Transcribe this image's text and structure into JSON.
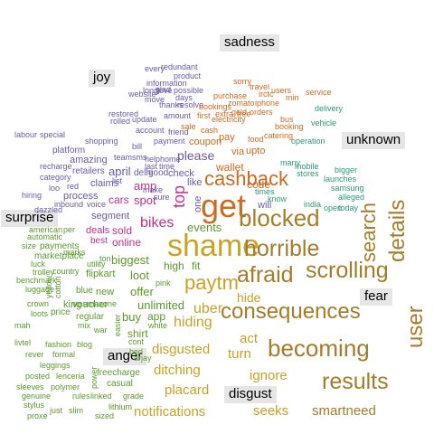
{
  "colors": {
    "surprise": "#c9a227",
    "fear": "#a67c2a",
    "joy": "#6a5aa8",
    "sadness": "#8a8ac0",
    "anger": "#5a9a2a",
    "disgust": "#b5a24a",
    "unknown": "#7aa04a",
    "cashback": "#d2691e",
    "pink": "#c4308a",
    "teal": "#2a9a7a"
  },
  "emotions": {
    "sadness": "sadness",
    "joy": "joy",
    "unknown": "unknown",
    "surprise": "surprise",
    "fear": "fear",
    "anger": "anger",
    "disgust": "disgust"
  },
  "words": {
    "shame": "shame",
    "get": "get",
    "blocked": "blocked",
    "horrible": "horrible",
    "afraid": "afraid",
    "scrolling": "scrolling",
    "consequences": "consequences",
    "becoming": "becoming",
    "results": "results",
    "user": "user",
    "details": "details",
    "search": "search",
    "cashback": "cashback",
    "paytm": "paytm",
    "smartneed": "smartneed",
    "seeks": "seeks",
    "ignore": "ignore",
    "notifications": "notifications",
    "placard": "placard",
    "ditching": "ditching",
    "disgusted": "disgusted",
    "hiding": "hiding",
    "uber": "uber",
    "hide": "hide",
    "act": "act",
    "turn": "turn",
    "events": "events",
    "bikes": "bikes",
    "top": "top",
    "please": "please",
    "amp": "amp",
    "spot": "spot",
    "cars": "cars",
    "sold": "sold",
    "online": "online",
    "biggest": "biggest",
    "loot": "loot",
    "offer": "offer",
    "unlimited": "unlimited",
    "buy": "buy",
    "high": "high",
    "fit": "fit",
    "segment": "segment",
    "april": "april",
    "claims": "claims",
    "amazing": "amazing",
    "flipkart": "flipkart",
    "new": "new",
    "king": "king",
    "voucher": "voucher",
    "amazone": "amazone",
    "price": "price",
    "regular": "regular",
    "freecharge": "freecharge",
    "casual": "casual",
    "lenceria": "lenceria",
    "shirt": "shirt",
    "app": "app",
    "wallet": "wallet",
    "code": "code",
    "upto": "upto",
    "flat": "flat",
    "via": "via",
    "pay": "pay",
    "coupon": "coupon",
    "one": "one",
    "will": "will",
    "ton": "ton",
    "retailers": "retailers",
    "process": "process",
    "platform": "platform",
    "marketplace": "marketplace",
    "payments": "payments",
    "blue": "blue",
    "cotton": "cotton",
    "yellow": "yellow",
    "like": "like",
    "check": "check",
    "good": "good",
    "fashion": "fashion",
    "blog": "blog",
    "leggings": "leggings",
    "posted": "posted",
    "sleeves": "sleeves",
    "polymer": "polymer",
    "genuine": "genuine",
    "stylus": "stylus",
    "rules": "rules",
    "linked": "linked",
    "grade": "grade",
    "lithium": "lithium",
    "sized": "sized",
    "slim": "slim",
    "just": "just",
    "proxe": "proxe",
    "formal": "formal",
    "rever": "rever",
    "livtel": "livtel",
    "mah": "mah",
    "crown": "crown",
    "deals": "deals",
    "best": "best",
    "delhi": "delhi",
    "marks": "marks",
    "utility": "utility",
    "country": "country",
    "recharge": "recharge",
    "category": "category",
    "hiring": "hiring",
    "loo": "loo",
    "red": "red",
    "inbound": "inbound",
    "voice": "voice",
    "special": "special",
    "labour": "labour",
    "shopping": "shopping",
    "team": "team",
    "helphome": "helphome",
    "account": "account",
    "service": "service",
    "sorry": "sorry",
    "travel": "travel",
    "users": "users",
    "min": "min",
    "purchase": "purchase",
    "gold": "gold",
    "orders": "orders",
    "booking": "booking",
    "catering": "catering",
    "food": "food",
    "operation": "operation",
    "vehicle": "vehicle",
    "delivery": "delivery",
    "india": "india",
    "open": "open",
    "today": "today",
    "alleged": "alleged",
    "bigger": "bigger",
    "launches": "launches",
    "samsung": "samsung",
    "mobile": "mobile",
    "stores": "stores",
    "many": "many",
    "times": "times",
    "know": "know",
    "bus": "bus",
    "iphone": "iphone",
    "zomato": "zomato",
    "irctc": "irctc",
    "electricity": "electricity",
    "extra": "extra",
    "free": "free",
    "first": "first",
    "bookings": "bookings",
    "cash": "cash",
    "sale": "sale",
    "payment": "payment",
    "friend": "friend",
    "amount": "amount",
    "thanks": "thanks",
    "update": "update",
    "restored": "restored",
    "rolled": "rolled",
    "glad": "glad",
    "move": "move",
    "website": "website",
    "every": "every",
    "redundant": "redundant",
    "product": "product",
    "information": "information",
    "long": "long",
    "love": "love",
    "possible": "possible",
    "days": "days",
    "resolve": "resolve",
    "bill": "bill",
    "sms": "sms",
    "last": "last",
    "time": "time",
    "list": "list",
    "make": "make",
    "sure": "sure",
    "dazzled": "dazzled",
    "automatic": "automatic",
    "american": "american",
    "per": "per",
    "size": "size",
    "luck": "luck",
    "trolley": "trolley",
    "benchmark": "benchmark",
    "luggage": "luggage",
    "mix": "mix",
    "power": "power",
    "pink": "pink",
    "cont": "cont",
    "bed": "bed",
    "arjay": "arjay",
    "war": "war",
    "easier": "easier",
    "white": "white",
    "loots": "loots"
  }
}
